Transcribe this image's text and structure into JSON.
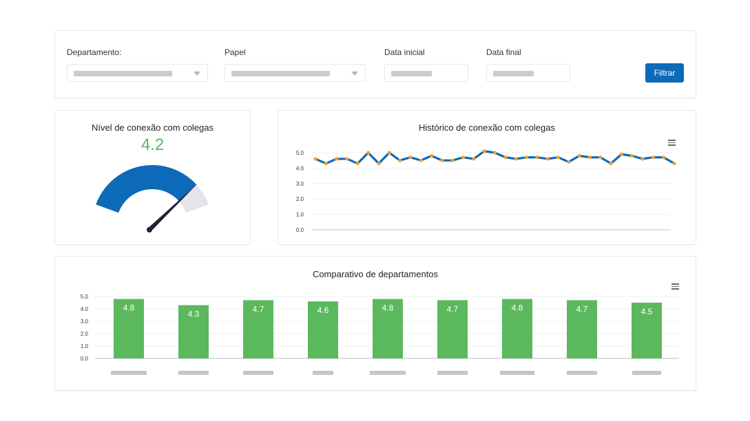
{
  "filters": {
    "department_label": "Departamento:",
    "role_label": "Papel",
    "start_date_label": "Data inicial",
    "end_date_label": "Data final",
    "filter_button": "Filtrar"
  },
  "gauge": {
    "title": "Nível de conexão com colegas",
    "value_text": "4.2",
    "value": 4.2,
    "max": 5,
    "fill_color": "#0d6ab8",
    "track_color": "#e4e4ea",
    "value_color": "#5cb85c"
  },
  "history": {
    "title": "Histórico de conexão com colegas",
    "chart_data": {
      "type": "line",
      "title": "Histórico de conexão com colegas",
      "ylim": [
        0,
        5
      ],
      "ytick_labels": [
        "0.0",
        "1.0",
        "2.0",
        "3.0",
        "4.0",
        "5.0"
      ],
      "line_color": "#0d6ab8",
      "marker_color": "#f0a030",
      "values": [
        4.6,
        4.3,
        4.6,
        4.6,
        4.3,
        5.0,
        4.3,
        5.0,
        4.5,
        4.7,
        4.5,
        4.8,
        4.5,
        4.5,
        4.7,
        4.6,
        5.1,
        5.0,
        4.7,
        4.6,
        4.7,
        4.7,
        4.6,
        4.7,
        4.4,
        4.8,
        4.7,
        4.7,
        4.3,
        4.9,
        4.8,
        4.6,
        4.7,
        4.7,
        4.3
      ]
    }
  },
  "compare": {
    "title": "Comparativo de departamentos",
    "chart_data": {
      "type": "bar",
      "title": "Comparativo de departamentos",
      "ylim": [
        0,
        5
      ],
      "ytick_labels": [
        "0.0",
        "1.0",
        "2.0",
        "3.0",
        "4.0",
        "5.0"
      ],
      "bar_color": "#5cb85c",
      "values": [
        4.8,
        4.3,
        4.7,
        4.6,
        4.8,
        4.7,
        4.8,
        4.7,
        4.5
      ],
      "value_labels": [
        "4.8",
        "4.3",
        "4.7",
        "4.6",
        "4.8",
        "4.7",
        "4.8",
        "4.7",
        "4.5"
      ]
    }
  }
}
